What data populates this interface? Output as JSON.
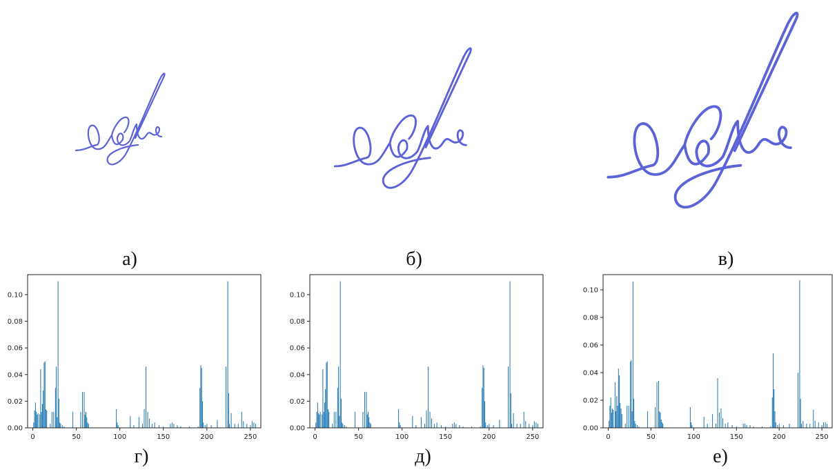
{
  "captions": {
    "a": "а)",
    "b": "б)",
    "v": "в)",
    "g": "г)",
    "d": "д)",
    "e": "е)"
  },
  "colors": {
    "ink": "#5B63D6",
    "bars": "#1F77B4",
    "axis": "#222222"
  },
  "chart_data": [
    {
      "type": "bar",
      "caption": "г)",
      "xlim": [
        -6,
        262
      ],
      "ylim": [
        0,
        0.115
      ],
      "xticks": [
        0,
        50,
        100,
        150,
        200,
        250
      ],
      "yticks": [
        0.0,
        0.02,
        0.04,
        0.06,
        0.08,
        0.1
      ],
      "ytick_labels": [
        "0.00",
        "0.02",
        "0.04",
        "0.06",
        "0.08",
        "0.10"
      ],
      "x": [
        1,
        2,
        3,
        4,
        5,
        6,
        8,
        9,
        10,
        11,
        12,
        13,
        14,
        15,
        16,
        20,
        22,
        24,
        26,
        27,
        28,
        29,
        30,
        31,
        32,
        34,
        36,
        46,
        55,
        57,
        59,
        60,
        61,
        62,
        63,
        64,
        96,
        97,
        98,
        112,
        116,
        122,
        126,
        128,
        130,
        132,
        134,
        137,
        140,
        145,
        150,
        158,
        160,
        162,
        166,
        170,
        180,
        190,
        192,
        193,
        194,
        195,
        196,
        198,
        200,
        205,
        212,
        222,
        224,
        225,
        226,
        228,
        232,
        236,
        240,
        242,
        246,
        250,
        252,
        254,
        256
      ],
      "values": [
        0.004,
        0.013,
        0.019,
        0.012,
        0.01,
        0.011,
        0.01,
        0.044,
        0.012,
        0.018,
        0.028,
        0.049,
        0.05,
        0.014,
        0.013,
        0.003,
        0.012,
        0.012,
        0.03,
        0.046,
        0.008,
        0.11,
        0.022,
        0.004,
        0.003,
        0.002,
        0.001,
        0.012,
        0.012,
        0.027,
        0.027,
        0.01,
        0.012,
        0.008,
        0.004,
        0.003,
        0.014,
        0.004,
        0.002,
        0.009,
        0.002,
        0.008,
        0.003,
        0.014,
        0.046,
        0.012,
        0.007,
        0.003,
        0.004,
        0.002,
        0.001,
        0.003,
        0.004,
        0.003,
        0.002,
        0.001,
        0.001,
        0.001,
        0.03,
        0.047,
        0.045,
        0.02,
        0.004,
        0.002,
        0.003,
        0.002,
        0.006,
        0.046,
        0.11,
        0.026,
        0.003,
        0.011,
        0.003,
        0.003,
        0.012,
        0.005,
        0.003,
        0.002,
        0.005,
        0.004,
        0.003
      ]
    },
    {
      "type": "bar",
      "caption": "д)",
      "xlim": [
        -6,
        262
      ],
      "ylim": [
        0,
        0.115
      ],
      "xticks": [
        0,
        50,
        100,
        150,
        200,
        250
      ],
      "yticks": [
        0.0,
        0.02,
        0.04,
        0.06,
        0.08,
        0.1
      ],
      "ytick_labels": [
        "0.00",
        "0.02",
        "0.04",
        "0.06",
        "0.08",
        "0.10"
      ],
      "x": [
        1,
        2,
        3,
        4,
        5,
        6,
        8,
        9,
        10,
        11,
        12,
        13,
        14,
        15,
        16,
        20,
        22,
        24,
        26,
        27,
        28,
        29,
        30,
        31,
        32,
        34,
        36,
        46,
        55,
        57,
        59,
        60,
        61,
        62,
        63,
        64,
        96,
        97,
        98,
        112,
        116,
        122,
        126,
        128,
        130,
        132,
        134,
        137,
        140,
        145,
        150,
        158,
        160,
        162,
        166,
        170,
        180,
        190,
        192,
        193,
        194,
        195,
        196,
        198,
        200,
        205,
        212,
        222,
        224,
        225,
        226,
        228,
        232,
        236,
        240,
        242,
        246,
        250,
        252,
        254,
        256
      ],
      "values": [
        0.004,
        0.012,
        0.019,
        0.011,
        0.01,
        0.012,
        0.01,
        0.044,
        0.012,
        0.019,
        0.029,
        0.049,
        0.05,
        0.014,
        0.012,
        0.003,
        0.012,
        0.012,
        0.03,
        0.046,
        0.009,
        0.11,
        0.022,
        0.004,
        0.003,
        0.002,
        0.001,
        0.012,
        0.012,
        0.027,
        0.027,
        0.01,
        0.012,
        0.008,
        0.004,
        0.003,
        0.014,
        0.004,
        0.002,
        0.009,
        0.002,
        0.008,
        0.003,
        0.013,
        0.046,
        0.012,
        0.007,
        0.003,
        0.004,
        0.002,
        0.001,
        0.003,
        0.004,
        0.003,
        0.002,
        0.001,
        0.001,
        0.001,
        0.03,
        0.047,
        0.045,
        0.02,
        0.004,
        0.002,
        0.003,
        0.002,
        0.006,
        0.046,
        0.11,
        0.026,
        0.003,
        0.011,
        0.003,
        0.003,
        0.012,
        0.005,
        0.003,
        0.002,
        0.005,
        0.004,
        0.003
      ]
    },
    {
      "type": "bar",
      "caption": "е)",
      "xlim": [
        -6,
        262
      ],
      "ylim": [
        0,
        0.111
      ],
      "xticks": [
        0,
        50,
        100,
        150,
        200,
        250
      ],
      "yticks": [
        0.0,
        0.02,
        0.04,
        0.06,
        0.08,
        0.1
      ],
      "ytick_labels": [
        "0.00",
        "0.02",
        "0.04",
        "0.06",
        "0.08",
        "0.10"
      ],
      "x": [
        1,
        2,
        3,
        4,
        5,
        6,
        8,
        9,
        10,
        11,
        12,
        13,
        14,
        15,
        16,
        20,
        22,
        24,
        26,
        27,
        28,
        29,
        30,
        31,
        32,
        34,
        36,
        46,
        55,
        57,
        59,
        60,
        61,
        62,
        63,
        64,
        96,
        97,
        98,
        112,
        116,
        122,
        126,
        128,
        130,
        132,
        134,
        137,
        140,
        145,
        150,
        158,
        160,
        162,
        166,
        170,
        180,
        190,
        192,
        193,
        194,
        195,
        196,
        198,
        200,
        205,
        212,
        222,
        224,
        225,
        226,
        228,
        232,
        236,
        240,
        242,
        246,
        250,
        252,
        254,
        256
      ],
      "values": [
        0.005,
        0.016,
        0.022,
        0.011,
        0.014,
        0.013,
        0.033,
        0.012,
        0.023,
        0.016,
        0.043,
        0.038,
        0.018,
        0.014,
        0.01,
        0.003,
        0.016,
        0.016,
        0.048,
        0.049,
        0.012,
        0.106,
        0.021,
        0.005,
        0.003,
        0.002,
        0.001,
        0.012,
        0.015,
        0.033,
        0.034,
        0.012,
        0.011,
        0.006,
        0.004,
        0.003,
        0.015,
        0.004,
        0.002,
        0.008,
        0.003,
        0.01,
        0.003,
        0.036,
        0.011,
        0.014,
        0.007,
        0.003,
        0.004,
        0.002,
        0.001,
        0.003,
        0.003,
        0.002,
        0.002,
        0.001,
        0.001,
        0.001,
        0.022,
        0.054,
        0.028,
        0.012,
        0.004,
        0.002,
        0.003,
        0.002,
        0.003,
        0.04,
        0.107,
        0.021,
        0.003,
        0.005,
        0.003,
        0.003,
        0.013,
        0.005,
        0.004,
        0.002,
        0.004,
        0.004,
        0.003
      ]
    }
  ]
}
